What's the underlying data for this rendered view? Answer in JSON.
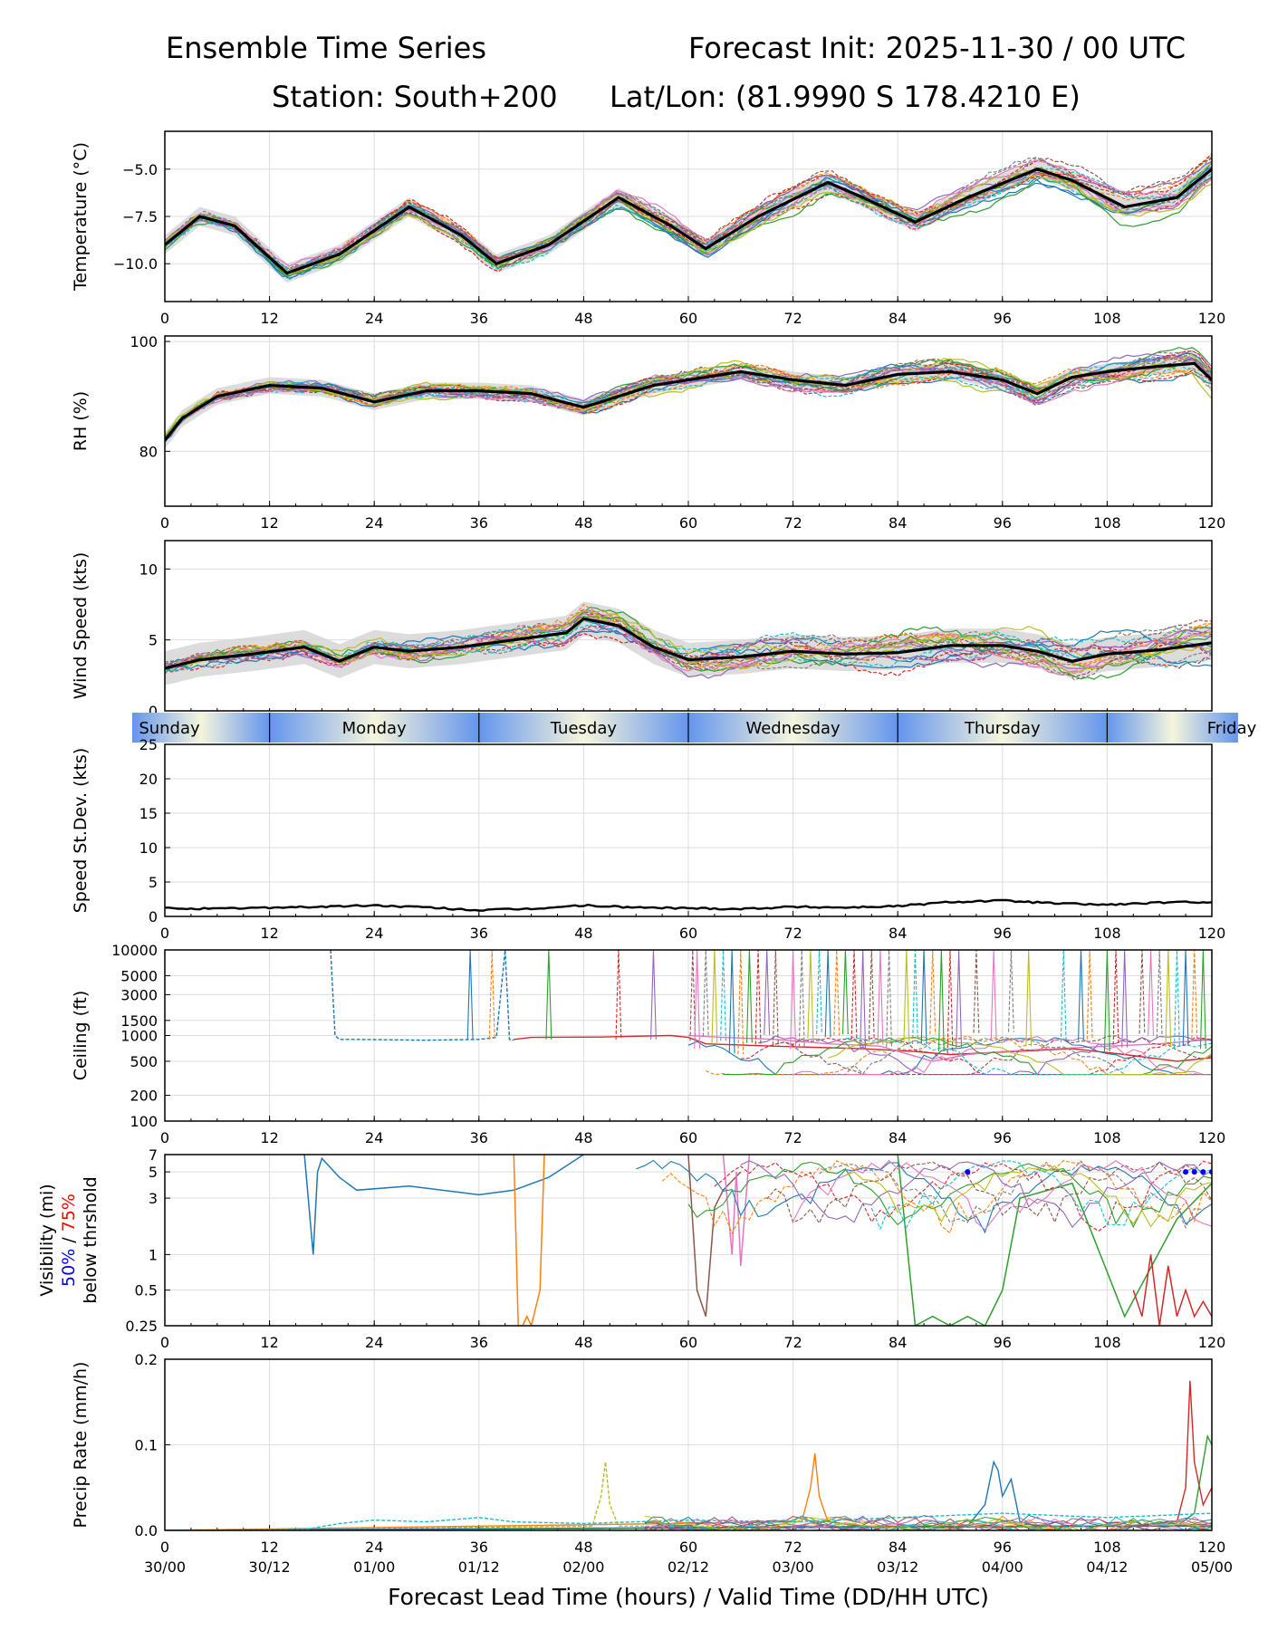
{
  "header": {
    "left_title": "Ensemble Time Series",
    "right_title": "Forecast Init: 2025-11-30 / 00 UTC",
    "station": "Station: South+200",
    "latlon": "Lat/Lon: (81.9990 S 178.4210 E)"
  },
  "colors": {
    "ensemble": [
      "#1f77b4",
      "#ff7f0e",
      "#2ca02c",
      "#d62728",
      "#9467bd",
      "#8c564b",
      "#e377c2",
      "#7f7f7f",
      "#bcbd22",
      "#17becf"
    ],
    "mean": "#000000",
    "spread_fill": "#d3d3d3",
    "vis_50": "#0000ff",
    "vis_75": "#ff0000",
    "day_band_light": "#f5f5dc",
    "day_band_blue": "#6495ed"
  },
  "chart_data": [
    {
      "id": "temperature",
      "type": "line",
      "ylabel": "Temperature (°C)",
      "xlim": [
        0,
        120
      ],
      "ylim": [
        -12,
        -3
      ],
      "yticks": [
        -10.0,
        -7.5,
        -5.0
      ],
      "ytick_labels": [
        "−10.0",
        "−7.5",
        "−5.0"
      ],
      "xticks": [
        0,
        12,
        24,
        36,
        48,
        60,
        72,
        84,
        96,
        108,
        120
      ],
      "xtick_labels": [
        "0",
        "12",
        "24",
        "36",
        "48",
        "60",
        "72",
        "84",
        "96",
        "108",
        "120"
      ],
      "mean": {
        "name": "ensemble mean",
        "x": [
          0,
          4,
          8,
          14,
          20,
          28,
          34,
          38,
          44,
          52,
          58,
          62,
          68,
          76,
          80,
          86,
          92,
          100,
          104,
          110,
          116,
          120
        ],
        "y": [
          -9.0,
          -7.5,
          -8.0,
          -10.5,
          -9.5,
          -7.0,
          -8.5,
          -10.0,
          -9.0,
          -6.5,
          -8.0,
          -9.2,
          -7.5,
          -5.7,
          -6.5,
          -7.8,
          -6.5,
          -5.0,
          -5.6,
          -7.0,
          -6.5,
          -5.0
        ]
      },
      "spread_half_width": 0.5,
      "members": 20
    },
    {
      "id": "rh",
      "type": "line",
      "ylabel": "RH (%)",
      "xlim": [
        0,
        120
      ],
      "ylim": [
        70,
        101
      ],
      "yticks": [
        80,
        100
      ],
      "ytick_labels": [
        "80",
        "100"
      ],
      "xticks": [
        0,
        12,
        24,
        36,
        48,
        60,
        72,
        84,
        96,
        108,
        120
      ],
      "xtick_labels": [
        "0",
        "12",
        "24",
        "36",
        "48",
        "60",
        "72",
        "84",
        "96",
        "108",
        "120"
      ],
      "mean": {
        "name": "ensemble mean",
        "x": [
          0,
          2,
          6,
          12,
          18,
          24,
          30,
          36,
          42,
          48,
          52,
          56,
          60,
          66,
          72,
          78,
          84,
          90,
          96,
          100,
          104,
          108,
          114,
          118,
          120
        ],
        "y": [
          82,
          86,
          90,
          92,
          91.5,
          89,
          91,
          91,
          90.5,
          88,
          90,
          92,
          93,
          94.5,
          93,
          92,
          94,
          94.5,
          93,
          90.5,
          93.5,
          94.5,
          95.5,
          96,
          93
        ]
      },
      "spread_half_width": 1.5,
      "members": 20
    },
    {
      "id": "wind_speed",
      "type": "line",
      "ylabel": "Wind Speed (kts)",
      "xlim": [
        0,
        120
      ],
      "ylim": [
        0,
        12
      ],
      "yticks": [
        0,
        5,
        10
      ],
      "ytick_labels": [
        "0",
        "5",
        "10"
      ],
      "mean": {
        "name": "ensemble mean",
        "x": [
          0,
          4,
          10,
          16,
          20,
          24,
          28,
          34,
          40,
          46,
          48,
          52,
          56,
          60,
          66,
          72,
          78,
          84,
          90,
          96,
          100,
          104,
          108,
          114,
          120
        ],
        "y": [
          3.0,
          3.6,
          4.0,
          4.5,
          3.5,
          4.5,
          4.2,
          4.5,
          5.0,
          5.5,
          6.5,
          6.0,
          4.5,
          3.6,
          3.8,
          4.2,
          4.0,
          4.1,
          4.6,
          4.6,
          4.2,
          3.5,
          4.0,
          4.3,
          4.8
        ]
      },
      "spread_half_width": 1.2,
      "members": 20
    },
    {
      "id": "day_band",
      "type": "table",
      "days": [
        {
          "label": "Sunday",
          "start": -4,
          "end": 12
        },
        {
          "label": "Monday",
          "start": 12,
          "end": 36
        },
        {
          "label": "Tuesday",
          "start": 36,
          "end": 60
        },
        {
          "label": "Wednesday",
          "start": 60,
          "end": 84
        },
        {
          "label": "Thursday",
          "start": 84,
          "end": 108
        },
        {
          "label": "Friday",
          "start": 108,
          "end": 123
        }
      ]
    },
    {
      "id": "speed_stdev",
      "type": "line",
      "ylabel": "Speed St.Dev. (kts)",
      "xlim": [
        0,
        120
      ],
      "ylim": [
        0,
        25
      ],
      "yticks": [
        0,
        5,
        10,
        15,
        20,
        25
      ],
      "ytick_labels": [
        "0",
        "5",
        "10",
        "15",
        "20",
        "25"
      ],
      "xticks": [
        0,
        12,
        24,
        36,
        48,
        60,
        72,
        84,
        96,
        108,
        120
      ],
      "xtick_labels": [
        "0",
        "12",
        "24",
        "36",
        "48",
        "60",
        "72",
        "84",
        "96",
        "108",
        "120"
      ],
      "series": [
        {
          "name": "speed st.dev.",
          "x": [
            0,
            6,
            12,
            18,
            24,
            30,
            36,
            42,
            48,
            54,
            60,
            66,
            72,
            78,
            84,
            90,
            96,
            102,
            108,
            114,
            120
          ],
          "y": [
            1.2,
            1.1,
            1.3,
            1.4,
            1.6,
            1.3,
            0.9,
            1.1,
            1.6,
            1.3,
            1.2,
            1.1,
            1.4,
            1.3,
            1.5,
            2.1,
            2.3,
            1.9,
            1.7,
            2.0,
            2.1
          ]
        }
      ]
    },
    {
      "id": "ceiling",
      "type": "line",
      "ylabel": "Ceiling (ft)",
      "scale": "log",
      "xlim": [
        0,
        120
      ],
      "ylim": [
        100,
        10000
      ],
      "yticks": [
        100,
        200,
        500,
        1000,
        1500,
        3000,
        5000,
        10000
      ],
      "ytick_labels": [
        "100",
        "200",
        "500",
        "1000",
        "1500",
        "3000",
        "5000",
        "10000"
      ],
      "xticks": [
        0,
        12,
        24,
        36,
        48,
        60,
        72,
        84,
        96,
        108,
        120
      ],
      "xtick_labels": [
        "0",
        "12",
        "24",
        "36",
        "48",
        "60",
        "72",
        "84",
        "96",
        "108",
        "120"
      ],
      "series": [
        {
          "name": "member 1",
          "x": [
            19,
            19.5,
            20,
            22,
            30,
            36,
            38,
            39,
            39.5,
            40
          ],
          "y": [
            10000,
            1000,
            900,
            900,
            880,
            900,
            950,
            10000,
            900,
            880
          ]
        },
        {
          "name": "member 2",
          "x": [
            40,
            42,
            50,
            54,
            58,
            60,
            62,
            70,
            80,
            86,
            90,
            96,
            104,
            110,
            116,
            120
          ],
          "y": [
            900,
            950,
            960,
            980,
            1000,
            950,
            800,
            750,
            700,
            650,
            600,
            640,
            700,
            600,
            500,
            550
          ]
        },
        {
          "name": "member 3",
          "x": [
            60,
            64,
            70,
            76,
            82,
            88,
            92,
            96,
            102,
            108,
            114,
            120
          ],
          "y": [
            1000,
            950,
            900,
            800,
            750,
            500,
            600,
            650,
            700,
            750,
            800,
            900
          ]
        }
      ],
      "spike_times": [
        35,
        37.5,
        44,
        52,
        56,
        60.5,
        61,
        62,
        63,
        64,
        65,
        66,
        67,
        68,
        69,
        70,
        72,
        73,
        74,
        75,
        76,
        77,
        78,
        79,
        80,
        81,
        82,
        83,
        85,
        86,
        87,
        88,
        89,
        90,
        91,
        93,
        95,
        97,
        99,
        103,
        105,
        106,
        108,
        109,
        110,
        112,
        113,
        114,
        115,
        116,
        117,
        118,
        119
      ]
    },
    {
      "id": "visibility",
      "type": "line",
      "ylabel": "Visibility (mi)",
      "ylabel_50": "50%",
      "ylabel_sep": " / ",
      "ylabel_75": "75%",
      "ylabel_sub": "below thrshold",
      "scale": "log",
      "xlim": [
        0,
        120
      ],
      "ylim": [
        0.25,
        7
      ],
      "yticks": [
        0.25,
        0.5,
        1,
        3,
        5,
        7
      ],
      "ytick_labels": [
        "0.25",
        "0.5",
        "1",
        "3",
        "5",
        "7"
      ],
      "xticks": [
        0,
        12,
        24,
        36,
        48,
        60,
        72,
        84,
        96,
        108,
        120
      ],
      "xtick_labels": [
        "0",
        "12",
        "24",
        "36",
        "48",
        "60",
        "72",
        "84",
        "96",
        "108",
        "120"
      ],
      "series": [
        {
          "name": "member 1",
          "x": [
            16,
            17,
            17.5,
            18,
            20,
            22,
            28,
            36,
            40,
            44,
            48
          ],
          "y": [
            7,
            1.0,
            5,
            6.5,
            4.5,
            3.5,
            3.8,
            3.2,
            3.5,
            4.5,
            7
          ]
        },
        {
          "name": "member 2",
          "x": [
            40,
            40.5,
            41,
            41.5,
            42,
            43,
            43.5
          ],
          "y": [
            7,
            0.25,
            0.25,
            0.3,
            0.25,
            0.5,
            7
          ]
        },
        {
          "name": "member 6",
          "x": [
            60,
            61,
            62,
            63,
            64,
            66
          ],
          "y": [
            7,
            0.5,
            0.3,
            2.5,
            3.5,
            5
          ]
        },
        {
          "name": "member 7",
          "x": [
            64,
            65,
            65.5,
            66,
            67
          ],
          "y": [
            7,
            1.0,
            5,
            0.8,
            7
          ]
        },
        {
          "name": "member 3",
          "x": [
            84,
            86,
            88,
            90,
            92,
            94,
            96,
            98,
            104,
            110,
            116,
            120
          ],
          "y": [
            7,
            0.25,
            0.3,
            0.25,
            0.3,
            0.25,
            0.5,
            3,
            4,
            0.3,
            2,
            4
          ]
        },
        {
          "name": "member 4",
          "x": [
            111,
            112,
            113,
            114,
            115,
            116,
            117,
            118,
            119,
            120
          ],
          "y": [
            0.5,
            0.3,
            1,
            0.25,
            0.8,
            0.3,
            0.5,
            0.3,
            0.4,
            0.3
          ]
        }
      ],
      "threshold_50_x": [
        92,
        117,
        118,
        119,
        120
      ],
      "threshold_50_y": 5
    },
    {
      "id": "precip",
      "type": "line",
      "ylabel": "Precip Rate (mm/h)",
      "xlabel": "Forecast Lead Time (hours) / Valid Time (DD/HH UTC)",
      "xlim": [
        0,
        120
      ],
      "ylim": [
        0.0,
        0.2
      ],
      "yticks": [
        0.0,
        0.1,
        0.2
      ],
      "ytick_labels": [
        "0.0",
        "0.1",
        "0.2"
      ],
      "xticks": [
        0,
        12,
        24,
        36,
        48,
        60,
        72,
        84,
        96,
        108,
        120
      ],
      "xtick_labels": [
        "0",
        "12",
        "24",
        "36",
        "48",
        "60",
        "72",
        "84",
        "96",
        "108",
        "120"
      ],
      "valid_labels": [
        "30/00",
        "30/12",
        "01/00",
        "01/12",
        "02/00",
        "02/12",
        "03/00",
        "03/12",
        "04/00",
        "04/12",
        "05/00"
      ],
      "series": [
        {
          "name": "member 4",
          "x": [
            0,
            110,
            116,
            117,
            117.5,
            118,
            119,
            120
          ],
          "y": [
            0,
            0.005,
            0.01,
            0.05,
            0.175,
            0.08,
            0.03,
            0.05
          ]
        },
        {
          "name": "member 3",
          "x": [
            0,
            116,
            118,
            119,
            119.5,
            120
          ],
          "y": [
            0,
            0.005,
            0.02,
            0.08,
            0.11,
            0.1
          ]
        },
        {
          "name": "member 9",
          "x": [
            0,
            49,
            50,
            50.5,
            51,
            52
          ],
          "y": [
            0,
            0.005,
            0.04,
            0.08,
            0.03,
            0.005
          ]
        },
        {
          "name": "member 2",
          "x": [
            0,
            73,
            74,
            74.5,
            75,
            76,
            80
          ],
          "y": [
            0,
            0.01,
            0.05,
            0.09,
            0.04,
            0.01,
            0.005
          ]
        },
        {
          "name": "member 1",
          "x": [
            0,
            92,
            94,
            95,
            95.5,
            96,
            97,
            98,
            100
          ],
          "y": [
            0,
            0.005,
            0.03,
            0.08,
            0.07,
            0.04,
            0.06,
            0.01,
            0.005
          ]
        },
        {
          "name": "member 10",
          "x": [
            0,
            16,
            20,
            24,
            30,
            36,
            40,
            48,
            60,
            72,
            84,
            96,
            108,
            120
          ],
          "y": [
            0,
            0.001,
            0.008,
            0.012,
            0.01,
            0.015,
            0.01,
            0.008,
            0.012,
            0.01,
            0.015,
            0.02,
            0.015,
            0.02
          ]
        }
      ]
    }
  ]
}
